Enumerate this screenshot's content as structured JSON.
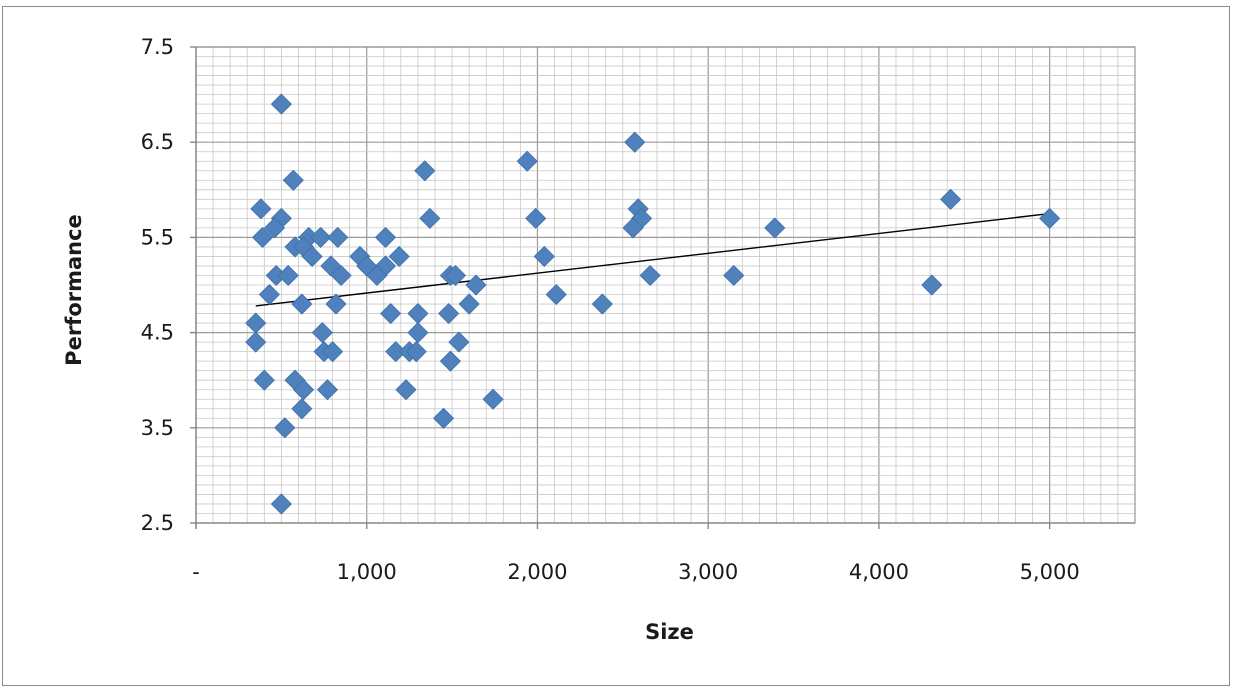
{
  "chart_data": {
    "type": "scatter",
    "title": "",
    "xlabel": "Size",
    "ylabel": "Performance",
    "xlim": [
      0,
      5500
    ],
    "ylim": [
      2.5,
      7.5
    ],
    "x_ticks": [
      0,
      1000,
      2000,
      3000,
      4000,
      5000
    ],
    "x_tick_labels": [
      "-",
      "1,000",
      "2,000",
      "3,000",
      "4,000",
      "5,000"
    ],
    "y_ticks": [
      2.5,
      3.5,
      4.5,
      5.5,
      6.5,
      7.5
    ],
    "y_tick_labels": [
      "2.5",
      "3.5",
      "4.5",
      "5.5",
      "6.5",
      "7.5"
    ],
    "grid": true,
    "legend": "none",
    "marker": "diamond",
    "marker_color": "#4f81bd",
    "trendline": {
      "type": "linear",
      "x": [
        350,
        5000
      ],
      "y": [
        4.78,
        5.75
      ],
      "color": "#000000"
    },
    "points": [
      {
        "x": 500,
        "y": 6.9
      },
      {
        "x": 2570,
        "y": 6.5
      },
      {
        "x": 1940,
        "y": 6.3
      },
      {
        "x": 1340,
        "y": 6.2
      },
      {
        "x": 570,
        "y": 6.1
      },
      {
        "x": 4420,
        "y": 5.9
      },
      {
        "x": 380,
        "y": 5.8
      },
      {
        "x": 2590,
        "y": 5.8
      },
      {
        "x": 500,
        "y": 5.7
      },
      {
        "x": 1370,
        "y": 5.7
      },
      {
        "x": 1990,
        "y": 5.7
      },
      {
        "x": 2610,
        "y": 5.7
      },
      {
        "x": 5000,
        "y": 5.7
      },
      {
        "x": 460,
        "y": 5.6
      },
      {
        "x": 2560,
        "y": 5.6
      },
      {
        "x": 3390,
        "y": 5.6
      },
      {
        "x": 390,
        "y": 5.5
      },
      {
        "x": 660,
        "y": 5.5
      },
      {
        "x": 730,
        "y": 5.5
      },
      {
        "x": 830,
        "y": 5.5
      },
      {
        "x": 1110,
        "y": 5.5
      },
      {
        "x": 580,
        "y": 5.4
      },
      {
        "x": 630,
        "y": 5.4
      },
      {
        "x": 680,
        "y": 5.3
      },
      {
        "x": 960,
        "y": 5.3
      },
      {
        "x": 1190,
        "y": 5.3
      },
      {
        "x": 2040,
        "y": 5.3
      },
      {
        "x": 790,
        "y": 5.2
      },
      {
        "x": 1000,
        "y": 5.2
      },
      {
        "x": 1110,
        "y": 5.2
      },
      {
        "x": 470,
        "y": 5.1
      },
      {
        "x": 540,
        "y": 5.1
      },
      {
        "x": 850,
        "y": 5.1
      },
      {
        "x": 1060,
        "y": 5.1
      },
      {
        "x": 1490,
        "y": 5.1
      },
      {
        "x": 1520,
        "y": 5.1
      },
      {
        "x": 2660,
        "y": 5.1
      },
      {
        "x": 3150,
        "y": 5.1
      },
      {
        "x": 1640,
        "y": 5.0
      },
      {
        "x": 4310,
        "y": 5.0
      },
      {
        "x": 430,
        "y": 4.9
      },
      {
        "x": 2110,
        "y": 4.9
      },
      {
        "x": 620,
        "y": 4.8
      },
      {
        "x": 820,
        "y": 4.8
      },
      {
        "x": 1600,
        "y": 4.8
      },
      {
        "x": 2380,
        "y": 4.8
      },
      {
        "x": 1140,
        "y": 4.7
      },
      {
        "x": 1300,
        "y": 4.7
      },
      {
        "x": 1480,
        "y": 4.7
      },
      {
        "x": 350,
        "y": 4.6
      },
      {
        "x": 740,
        "y": 4.5
      },
      {
        "x": 1300,
        "y": 4.5
      },
      {
        "x": 350,
        "y": 4.4
      },
      {
        "x": 1540,
        "y": 4.4
      },
      {
        "x": 750,
        "y": 4.3
      },
      {
        "x": 800,
        "y": 4.3
      },
      {
        "x": 1170,
        "y": 4.3
      },
      {
        "x": 1250,
        "y": 4.3
      },
      {
        "x": 1290,
        "y": 4.3
      },
      {
        "x": 1490,
        "y": 4.2
      },
      {
        "x": 400,
        "y": 4.0
      },
      {
        "x": 580,
        "y": 4.0
      },
      {
        "x": 630,
        "y": 3.9
      },
      {
        "x": 770,
        "y": 3.9
      },
      {
        "x": 1230,
        "y": 3.9
      },
      {
        "x": 1740,
        "y": 3.8
      },
      {
        "x": 620,
        "y": 3.7
      },
      {
        "x": 1450,
        "y": 3.6
      },
      {
        "x": 520,
        "y": 3.5
      },
      {
        "x": 500,
        "y": 2.7
      }
    ]
  }
}
